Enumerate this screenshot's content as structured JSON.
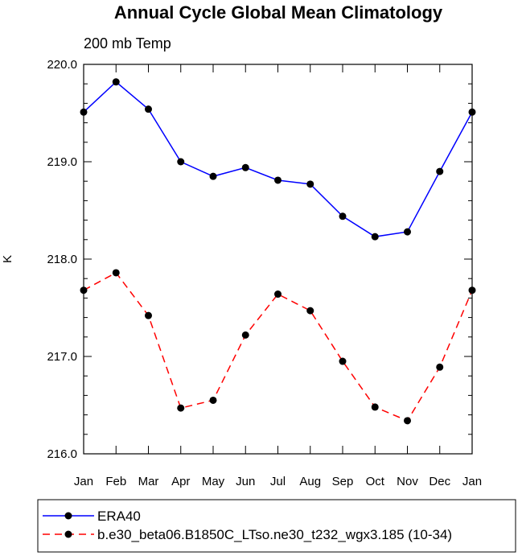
{
  "chart_data": {
    "type": "line",
    "title": "Annual Cycle Global Mean Climatology",
    "subtitle": "200 mb Temp",
    "xlabel": "",
    "ylabel": "K",
    "categories": [
      "Jan",
      "Feb",
      "Mar",
      "Apr",
      "May",
      "Jun",
      "Jul",
      "Aug",
      "Sep",
      "Oct",
      "Nov",
      "Dec",
      "Jan"
    ],
    "ylim": [
      216.0,
      220.0
    ],
    "yticks": [
      "216.0",
      "217.0",
      "218.0",
      "219.0",
      "220.0"
    ],
    "series": [
      {
        "name": "ERA40",
        "color": "#0000ff",
        "dash": "solid",
        "values": [
          219.51,
          219.82,
          219.54,
          219.0,
          218.85,
          218.94,
          218.81,
          218.77,
          218.44,
          218.23,
          218.28,
          218.9,
          219.51
        ]
      },
      {
        "name": "b.e30_beta06.B1850C_LTso.ne30_t232_wgx3.185 (10-34)",
        "color": "#ff0000",
        "dash": "dashed",
        "values": [
          217.68,
          217.86,
          217.42,
          216.47,
          216.55,
          217.22,
          217.64,
          217.47,
          216.95,
          216.48,
          216.34,
          216.89,
          217.68
        ]
      }
    ],
    "legend": "bottom",
    "grid": false
  }
}
